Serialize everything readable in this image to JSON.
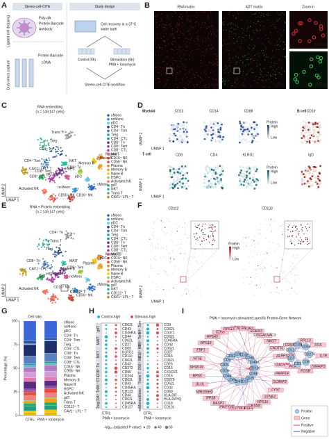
{
  "panels": {
    "A": {
      "letter": "A",
      "title": "Stereo-cell-CITE",
      "schematic": [
        "Poly-dA",
        "Protein Barcode",
        "Antibody",
        "Protein Barcode",
        "cDNA"
      ],
      "side": [
        "Ligated cell dropping",
        "Dual omics capture"
      ],
      "design_title": "Study design",
      "recovery": [
        "Cell recovery in a 37°C",
        "water bath"
      ],
      "control": "Control (6h)",
      "stimulation": [
        "Stimulation (6h)",
        "PMA + Ionomycin"
      ],
      "workflow": "Stereo-cell-CITE workflow"
    },
    "B": {
      "letter": "B",
      "titles": [
        "RNA matrix",
        "ADT matrix",
        "Zoom in"
      ],
      "regions": [
        "I",
        "II"
      ],
      "scale_mm": "1 mm",
      "scale_um": "100 µm"
    },
    "C": {
      "letter": "C",
      "title": "RNA embedding",
      "n": "(n = 149,147 cells)",
      "x_axis": "UMAP 1",
      "y_axis": "UMAP 2",
      "legend": [
        "cMono",
        "ncMono",
        "pDC",
        "CD4⁺ Tn",
        "CD4⁺ Tcm",
        "Treg",
        "CD4⁺ CTL",
        "CD8⁺ Tn",
        "CD8⁺ Tem",
        "CD8⁺ CTL",
        "MAIT",
        "CD16⁺ NK",
        "CD56⁺ NK",
        "Plasma",
        "Memory B",
        "Naive B",
        "HSPC",
        "Activated NK",
        "gdT",
        "NKT",
        "Trans T",
        "CAV1⁺ LPL⁺ T"
      ],
      "colors": [
        "#1f5fbf",
        "#2f8fd6",
        "#63c6e6",
        "#1d3f7a",
        "#3a6fa8",
        "#2aa198",
        "#16a085",
        "#6c3483",
        "#8e44ad",
        "#b03a9d",
        "#d64f93",
        "#c0392b",
        "#e74c3c",
        "#e67e22",
        "#f39c12",
        "#f1c40f",
        "#9acd32",
        "#ff6f61",
        "#27ae60",
        "#1abc9c",
        "#7f8c8d",
        "#b7950b"
      ],
      "plot_labels": [
        "Trans T",
        "Treg",
        "CD4⁺ Tn",
        "CAV1⁺ LPL⁺ T",
        "CD4⁺ Tcm",
        "CD8⁺ Tn",
        "CD8⁺ CTL",
        "NKT",
        "MAIT",
        "gdT",
        "HSPC",
        "Plasma",
        "Memory B",
        "Naive B",
        "pDC",
        "cMono",
        "ncMono",
        "CD16⁺ NK",
        "Activated NK",
        "CD56⁺ NK",
        "CD8⁺ Tem"
      ]
    },
    "D": {
      "letter": "D",
      "groups": [
        "Myeloid",
        "B cell",
        "T cell"
      ],
      "markers_top": [
        "CD13",
        "CD14",
        "CD88",
        "CD19"
      ],
      "markers_bottom": [
        "CD8",
        "CD4",
        "KLRG1",
        "IgD"
      ],
      "legend": [
        "Protein",
        "High",
        "Low"
      ]
    },
    "E": {
      "letter": "E",
      "title": "RNA + Protein embedding",
      "n": "(n = 149,147 cells)",
      "highlight": "CD112⁺ T",
      "legend": [
        "cMono",
        "ncMono",
        "pDC",
        "CD4⁺ Tn",
        "CD4⁺ Tcm",
        "Treg",
        "CD4⁺ CTL",
        "CD8⁺ Tn",
        "CD8⁺ Tem",
        "CD8⁺ CTL",
        "MAIT",
        "CD16⁺ NK",
        "CD56⁺ NK",
        "Plasma",
        "Memory B",
        "Naive B",
        "HSPC",
        "Activated NK",
        "gdT",
        "NKT",
        "CD112⁺ T",
        "CAV1⁺ LPL⁺ T"
      ],
      "plot_labels": [
        "CD4⁺ Tn",
        "Trans T",
        "Treg",
        "CAV1⁺ LPL⁺ T",
        "CD8⁺ Tn",
        "CD8⁺ Tem",
        "NKT",
        "MAIT",
        "gdT",
        "HSPC",
        "Naive B",
        "Memory B",
        "Plasma",
        "pDC",
        "ncMono",
        "cMono",
        "CD16⁺ NK",
        "CD56⁺ NK",
        "Activated NK"
      ]
    },
    "F": {
      "letter": "F",
      "markers": [
        "CD112",
        "CD103"
      ],
      "legend": [
        "Protein",
        "High",
        "Low"
      ]
    },
    "H": {
      "letter": "H",
      "legend": [
        "Control-high",
        "Stimulus-high"
      ],
      "x_labels": [
        "CTRL",
        "PMA + Ionomycin"
      ],
      "size_title": "-log₁₀ (adjusted P value)",
      "size_values": [
        20,
        40,
        60
      ],
      "columns": [
        {
          "groups": [
            "gdT",
            "MAIT",
            "NKT",
            "CD8⁺ Tn",
            "CD8⁺ CTL",
            "CD4⁺ Tn",
            "Treg"
          ],
          "markers": [
            "CD62L",
            "CD43",
            "CD45RA",
            "CD44",
            "CD62L",
            "CD27",
            "CD69",
            "KLRG1",
            "CD11c",
            "CD62L",
            "CD43",
            "CD272",
            "CD96",
            "CD244",
            "CD62L",
            "CD43",
            "CD45RA",
            "CD123",
            "CD43",
            "CD62L",
            "CD45RA",
            "CD127"
          ]
        },
        {
          "groups": [
            "CD4⁺ Tcm",
            "CD8⁺ Tem",
            "CD16⁺ NK",
            "CD56⁺ NK",
            "Trans T",
            "cMono",
            "ncMono"
          ],
          "markers": [
            "CD9",
            "CD62L",
            "CD371",
            "CD62L",
            "CD45RA",
            "CD43",
            "CD62L",
            "CD27",
            "CD16",
            "CD62L",
            "CD26",
            "CD16",
            "CX3CR1",
            "CD16",
            "CD279",
            "CD62L",
            "CD43",
            "CD69",
            "HLA-DR",
            "HLA-D/P/Q",
            "CD18",
            "CD101"
          ]
        }
      ]
    },
    "I": {
      "letter": "I",
      "title": [
        "PMA + Ionomycin stimulated specific Protein-Gene Network"
      ],
      "legend": [
        "Protein",
        "Gene",
        "Positive",
        "Negative"
      ],
      "genes": [
        "GNLY",
        "PIK3R1",
        "EDEM3",
        "ST6GALNAC3",
        "NKG7",
        "CNOT6L",
        "ZEB2",
        "GALNT8",
        "PARP14",
        "SCARF2",
        "LYST",
        "SYNE2",
        "RPS16",
        "CRTAM",
        "TNFRSF9",
        "AL121768.1",
        "PIKFYVE",
        "BASP1",
        "RPS8",
        "MIR155HG",
        "GLUL",
        "RPS5",
        "SH3D19",
        "NT5E",
        "EBF1",
        "RPS18",
        "RPS4X",
        "CD55",
        "RPS13",
        "IL7R",
        "TNFAIP3",
        "FOSB",
        "PKIA",
        "RPS27A",
        "FO393400.1",
        "RPL13",
        "FOS"
      ],
      "proteins": [
        "CD226",
        "CD98",
        "CD25",
        "CD27",
        "CD47",
        "CD69",
        "CD44",
        "CD28",
        "CD29",
        "CD8",
        "CD62L",
        "CD5",
        "CD38",
        "CD45",
        "CD49d",
        "CD279",
        "CD6",
        "CD2",
        "CD7",
        "CD127",
        "CD26",
        "CD54"
      ]
    }
  },
  "chart_data": {
    "type": "bar",
    "stacked": true,
    "letter": "G",
    "title": "Cell ratio",
    "ylabel": "Percentage (%)",
    "categories": [
      "CTRL",
      "PMA + Ionomycin"
    ],
    "ylim": [
      0,
      100
    ],
    "yticks": [
      0,
      25,
      50,
      75,
      100
    ],
    "series": [
      {
        "name": "cMono",
        "color": "#3a66d6",
        "values": [
          21,
          18
        ]
      },
      {
        "name": "ncMono",
        "color": "#2c4fa3",
        "values": [
          3,
          2
        ]
      },
      {
        "name": "pDC",
        "color": "#8fb4e8",
        "values": [
          1,
          1
        ]
      },
      {
        "name": "CD4⁺ Tn",
        "color": "#1d2f6a",
        "values": [
          12,
          13
        ]
      },
      {
        "name": "CD4⁺ Tcm",
        "color": "#5b7fc0",
        "values": [
          8,
          9
        ]
      },
      {
        "name": "Treg",
        "color": "#2aa198",
        "values": [
          2,
          2
        ]
      },
      {
        "name": "CD4⁺ CTL",
        "color": "#6bb8c9",
        "values": [
          2,
          2
        ]
      },
      {
        "name": "CD8⁺ Tn",
        "color": "#b07cc6",
        "values": [
          5,
          6
        ]
      },
      {
        "name": "CD8⁺ Tem",
        "color": "#d59ad8",
        "values": [
          6,
          6
        ]
      },
      {
        "name": "CD8⁺ CTL",
        "color": "#e07ab0",
        "values": [
          4,
          4
        ]
      },
      {
        "name": "CD16⁺ NK",
        "color": "#5a2a82",
        "values": [
          8,
          6
        ]
      },
      {
        "name": "CD56⁺ NK",
        "color": "#8e44ad",
        "values": [
          2,
          2
        ]
      },
      {
        "name": "Plasma",
        "color": "#c0392b",
        "values": [
          1,
          1
        ]
      },
      {
        "name": "Memory B",
        "color": "#e74c3c",
        "values": [
          4,
          4
        ]
      },
      {
        "name": "Naive B",
        "color": "#f08080",
        "values": [
          5,
          5
        ]
      },
      {
        "name": "HSPC",
        "color": "#7cb342",
        "values": [
          1,
          1
        ]
      },
      {
        "name": "Activated NK",
        "color": "#f39c12",
        "values": [
          2,
          4
        ]
      },
      {
        "name": "gdT",
        "color": "#27ae60",
        "values": [
          3,
          3
        ]
      },
      {
        "name": "Trans T",
        "color": "#16a085",
        "values": [
          5,
          5
        ]
      },
      {
        "name": "CD112⁺ T",
        "color": "#f1c40f",
        "values": [
          2,
          3
        ]
      },
      {
        "name": "CAV1⁺ LPL⁺ T",
        "color": "#e6b800",
        "values": [
          3,
          3
        ]
      }
    ]
  }
}
